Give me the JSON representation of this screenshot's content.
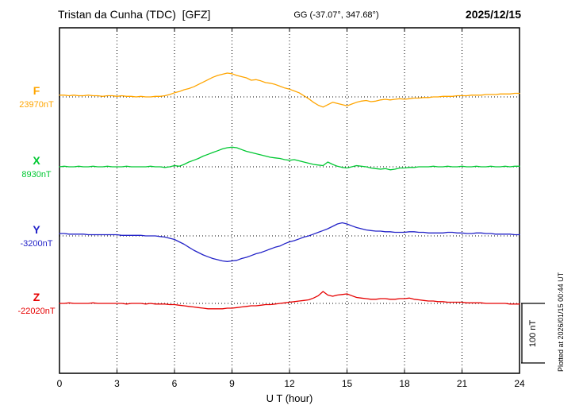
{
  "chart_data": {
    "type": "line",
    "title": "Tristan da Cunha (TDC)  [GFZ]",
    "subtitle": "GG (-37.07°, 347.68°)",
    "date": "2025/12/15",
    "xlabel": "U T (hour)",
    "unit": "nT",
    "x_start": 0,
    "x_end": 24,
    "x_step": 0.25,
    "x_ticks": [
      0,
      3,
      6,
      9,
      12,
      15,
      18,
      21,
      24
    ],
    "grid": "dotted vertical lines at ticks; dotted horizontal baseline per series",
    "values_are": "deviation from component baseline, in nT",
    "scale_bar": {
      "label": "100 nT",
      "value_nT": 100
    },
    "plotted_at": "Plotted at 2026/01/15 00:44 UT",
    "series": [
      {
        "name": "F",
        "baseline_label": "23970nT",
        "color": "#FFA500",
        "values": [
          3,
          3,
          2,
          3,
          2,
          2,
          3,
          2,
          2,
          1,
          2,
          2,
          1,
          2,
          1,
          1,
          0,
          1,
          0,
          0,
          1,
          1,
          2,
          4,
          7,
          9,
          12,
          14,
          17,
          21,
          25,
          29,
          33,
          36,
          38,
          40,
          39,
          36,
          34,
          32,
          28,
          29,
          27,
          24,
          23,
          21,
          18,
          15,
          13,
          10,
          7,
          2,
          -3,
          -9,
          -14,
          -17,
          -13,
          -9,
          -11,
          -13,
          -15,
          -12,
          -9,
          -7,
          -6,
          -8,
          -7,
          -5,
          -4,
          -5,
          -4,
          -3,
          -4,
          -3,
          -2,
          -2,
          -1,
          -1,
          0,
          0,
          1,
          1,
          1,
          2,
          2,
          2,
          3,
          3,
          3,
          4,
          4,
          4,
          5,
          5,
          5,
          6,
          6
        ]
      },
      {
        "name": "X",
        "baseline_label": "8930nT",
        "color": "#00C832",
        "values": [
          0,
          1,
          0,
          0,
          1,
          0,
          0,
          1,
          0,
          0,
          1,
          0,
          0,
          0,
          1,
          0,
          0,
          0,
          0,
          1,
          0,
          0,
          -1,
          0,
          2,
          1,
          4,
          8,
          11,
          14,
          18,
          21,
          24,
          27,
          30,
          32,
          33,
          32,
          29,
          26,
          24,
          22,
          20,
          18,
          16,
          15,
          14,
          12,
          11,
          12,
          10,
          8,
          6,
          4,
          3,
          2,
          8,
          4,
          1,
          -1,
          -2,
          0,
          2,
          1,
          0,
          -2,
          -3,
          -4,
          -3,
          -5,
          -4,
          -2,
          -2,
          -1,
          -1,
          0,
          0,
          0,
          1,
          0,
          0,
          1,
          0,
          0,
          1,
          0,
          0,
          1,
          0,
          0,
          1,
          0,
          0,
          1,
          0,
          1,
          1
        ]
      },
      {
        "name": "Y",
        "baseline_label": "-3200nT",
        "color": "#2323C8",
        "values": [
          4,
          4,
          3,
          3,
          3,
          3,
          2,
          2,
          2,
          2,
          2,
          2,
          2,
          1,
          1,
          1,
          1,
          1,
          0,
          0,
          0,
          -1,
          -2,
          -4,
          -6,
          -10,
          -14,
          -19,
          -24,
          -28,
          -32,
          -35,
          -38,
          -40,
          -42,
          -43,
          -42,
          -41,
          -38,
          -36,
          -33,
          -30,
          -28,
          -25,
          -22,
          -19,
          -17,
          -13,
          -10,
          -8,
          -5,
          -2,
          0,
          3,
          6,
          9,
          12,
          16,
          20,
          22,
          20,
          17,
          14,
          12,
          10,
          9,
          8,
          8,
          7,
          7,
          6,
          6,
          6,
          7,
          7,
          6,
          6,
          5,
          5,
          5,
          5,
          6,
          6,
          5,
          5,
          4,
          4,
          5,
          5,
          4,
          4,
          3,
          3,
          3,
          3,
          2,
          2
        ]
      },
      {
        "name": "Z",
        "baseline_label": "-22020nT",
        "color": "#E60000",
        "values": [
          0,
          0,
          1,
          0,
          0,
          0,
          0,
          1,
          0,
          0,
          0,
          0,
          0,
          0,
          -1,
          0,
          0,
          0,
          -1,
          0,
          -1,
          -1,
          -1,
          -2,
          -2,
          -3,
          -4,
          -5,
          -6,
          -7,
          -8,
          -9,
          -9,
          -9,
          -9,
          -8,
          -8,
          -7,
          -6,
          -5,
          -4,
          -4,
          -3,
          -2,
          -2,
          -1,
          0,
          1,
          2,
          3,
          4,
          5,
          6,
          9,
          13,
          20,
          14,
          12,
          14,
          15,
          16,
          13,
          10,
          9,
          8,
          7,
          7,
          8,
          8,
          7,
          7,
          8,
          8,
          9,
          7,
          6,
          5,
          4,
          4,
          3,
          3,
          2,
          2,
          2,
          2,
          1,
          1,
          1,
          1,
          0,
          0,
          0,
          0,
          0,
          -1,
          -1,
          -1
        ]
      }
    ]
  }
}
